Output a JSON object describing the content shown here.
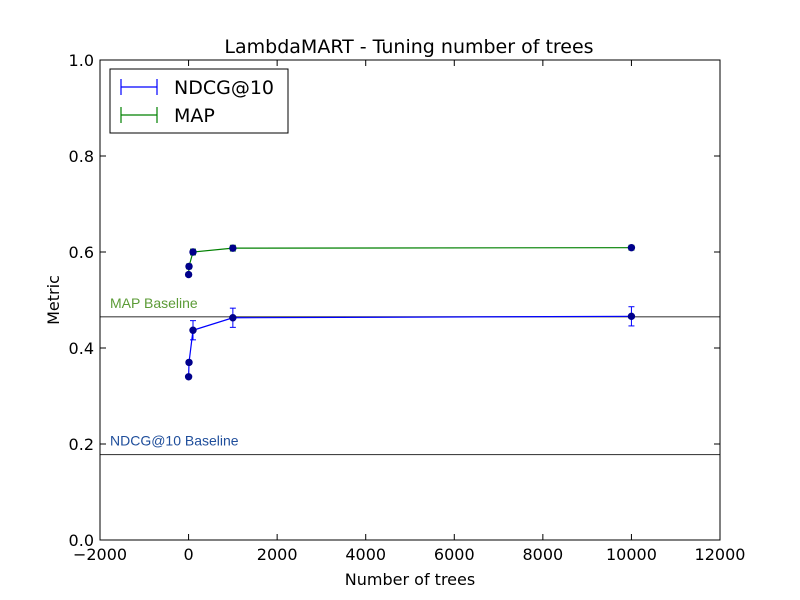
{
  "chart_data": {
    "type": "line",
    "title": "LambdaMART - Tuning number of trees",
    "xlabel": "Number of trees",
    "ylabel": "Metric",
    "xlim": [
      -2000,
      12000
    ],
    "ylim": [
      0.0,
      1.0
    ],
    "xticks": [
      -2000,
      0,
      2000,
      4000,
      6000,
      8000,
      10000,
      12000
    ],
    "yticks": [
      0.0,
      0.2,
      0.4,
      0.6,
      0.8,
      1.0
    ],
    "xtick_labels": [
      "−2000",
      "0",
      "2000",
      "4000",
      "6000",
      "8000",
      "10000",
      "12000"
    ],
    "ytick_labels": [
      "0.0",
      "0.2",
      "0.4",
      "0.6",
      "0.8",
      "1.0"
    ],
    "grid": false,
    "legend_position": "top-left",
    "series": [
      {
        "name": "NDCG@10",
        "color": "#0000ff",
        "marker_color": "#00008b",
        "x": [
          1,
          10,
          100,
          1000,
          10000
        ],
        "y": [
          0.34,
          0.37,
          0.437,
          0.463,
          0.466
        ],
        "err": [
          0.003,
          0.004,
          0.02,
          0.02,
          0.02
        ]
      },
      {
        "name": "MAP",
        "color": "#008000",
        "marker_color": "#00008b",
        "x": [
          1,
          10,
          100,
          1000,
          10000
        ],
        "y": [
          0.553,
          0.57,
          0.6,
          0.608,
          0.609
        ],
        "err": [
          0.004,
          0.005,
          0.006,
          0.006,
          0.005
        ]
      }
    ],
    "baselines": [
      {
        "label": "MAP Baseline",
        "y": 0.465,
        "text_color": "#5b9b36",
        "line_color": "#444444"
      },
      {
        "label": "NDCG@10 Baseline",
        "y": 0.178,
        "text_color": "#1f4e9b",
        "line_color": "#444444"
      }
    ]
  }
}
